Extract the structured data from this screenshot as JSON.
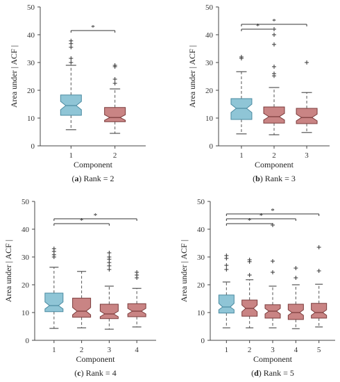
{
  "colors": {
    "first": "#8fc5d6",
    "first_edge": "#4a8aa0",
    "rest": "#c98484",
    "rest_edge": "#7a3a3a"
  },
  "chart_data": [
    {
      "type": "box",
      "xlabel": "Component",
      "ylabel": "Area under | ACF |",
      "ylim": [
        0,
        50
      ],
      "yticks": [
        0,
        10,
        20,
        30,
        40,
        50
      ],
      "caption_letter": "(a)",
      "caption_text": "Rank = 2",
      "categories": [
        "1",
        "2"
      ],
      "boxes": [
        {
          "category": "1",
          "min": 5.8,
          "q1": 11,
          "median": 14.5,
          "q3": 18.3,
          "max": 29,
          "notch_lo": 13,
          "notch_hi": 16,
          "outliers": [
            31.5,
            30,
            35.5,
            36.8,
            37.8
          ]
        },
        {
          "category": "2",
          "min": 4.5,
          "q1": 8.7,
          "median": 10.2,
          "q3": 13.8,
          "max": 20.5,
          "notch_lo": 9.2,
          "notch_hi": 11.2,
          "outliers": [
            22.5,
            24,
            28.5,
            29
          ]
        }
      ],
      "significance": [
        {
          "from": "1",
          "to": "2",
          "label": "*"
        }
      ]
    },
    {
      "type": "box",
      "xlabel": "Component",
      "ylabel": "Area under | ACF |",
      "ylim": [
        0,
        50
      ],
      "yticks": [
        0,
        10,
        20,
        30,
        40,
        50
      ],
      "caption_letter": "(b)",
      "caption_text": "Rank = 3",
      "categories": [
        "1",
        "2",
        "3"
      ],
      "boxes": [
        {
          "category": "1",
          "min": 4.3,
          "q1": 9.5,
          "median": 13.5,
          "q3": 17,
          "max": 26.7,
          "notch_lo": 12,
          "notch_hi": 15,
          "outliers": [
            31.5,
            32
          ]
        },
        {
          "category": "2",
          "min": 4,
          "q1": 8.2,
          "median": 10.5,
          "q3": 14,
          "max": 21,
          "notch_lo": 9.3,
          "notch_hi": 11.7,
          "outliers": [
            25.2,
            26,
            28.5,
            36.5,
            40,
            42
          ]
        },
        {
          "category": "3",
          "min": 4.8,
          "q1": 8,
          "median": 10.2,
          "q3": 13.5,
          "max": 19.2,
          "notch_lo": 9,
          "notch_hi": 11.4,
          "outliers": [
            30
          ]
        }
      ],
      "significance": [
        {
          "from": "1",
          "to": "2",
          "label": "*"
        },
        {
          "from": "1",
          "to": "3",
          "label": "*"
        }
      ]
    },
    {
      "type": "box",
      "xlabel": "Component",
      "ylabel": "Area under | ACF |",
      "ylim": [
        0,
        50
      ],
      "yticks": [
        0,
        10,
        20,
        30,
        40,
        50
      ],
      "caption_letter": "(c)",
      "caption_text": "Rank = 4",
      "categories": [
        "1",
        "2",
        "3",
        "4"
      ],
      "boxes": [
        {
          "category": "1",
          "min": 4.3,
          "q1": 10.3,
          "median": 12.5,
          "q3": 17,
          "max": 26.3,
          "notch_lo": 11.3,
          "notch_hi": 13.8,
          "outliers": [
            30,
            30.8,
            32,
            33
          ]
        },
        {
          "category": "2",
          "min": 4.5,
          "q1": 8.3,
          "median": 10.5,
          "q3": 15.2,
          "max": 24.8,
          "notch_lo": 9.2,
          "notch_hi": 11.8,
          "outliers": []
        },
        {
          "category": "3",
          "min": 4,
          "q1": 7.8,
          "median": 9.5,
          "q3": 13,
          "max": 19.5,
          "notch_lo": 8.5,
          "notch_hi": 10.5,
          "outliers": [
            25.5,
            26.8,
            28,
            29.2,
            30,
            31.5
          ]
        },
        {
          "category": "4",
          "min": 4.8,
          "q1": 8.5,
          "median": 10.5,
          "q3": 13.2,
          "max": 18.7,
          "notch_lo": 9.5,
          "notch_hi": 11.5,
          "outliers": [
            22.5,
            23.5,
            24.5
          ]
        }
      ],
      "significance": [
        {
          "from": "1",
          "to": "3",
          "label": "*"
        },
        {
          "from": "1",
          "to": "4",
          "label": "*"
        }
      ]
    },
    {
      "type": "box",
      "xlabel": "Component",
      "ylabel": "Area under | ACF |",
      "ylim": [
        0,
        50
      ],
      "yticks": [
        0,
        10,
        20,
        30,
        40,
        50
      ],
      "caption_letter": "(d)",
      "caption_text": "Rank = 5",
      "categories": [
        "1",
        "2",
        "3",
        "4",
        "5"
      ],
      "boxes": [
        {
          "category": "1",
          "min": 4.5,
          "q1": 9.8,
          "median": 12,
          "q3": 16.3,
          "max": 21,
          "notch_lo": 11,
          "notch_hi": 13.3,
          "outliers": [
            25.5,
            27,
            29.5,
            30.5
          ]
        },
        {
          "category": "2",
          "min": 4.5,
          "q1": 8.7,
          "median": 11.5,
          "q3": 14.5,
          "max": 21.8,
          "notch_lo": 10.3,
          "notch_hi": 12.7,
          "outliers": [
            23.5,
            28.3,
            29
          ]
        },
        {
          "category": "3",
          "min": 4.5,
          "q1": 8,
          "median": 10.5,
          "q3": 12.8,
          "max": 19.5,
          "notch_lo": 9.5,
          "notch_hi": 11.5,
          "outliers": [
            24.5,
            28.5,
            41.5
          ]
        },
        {
          "category": "4",
          "min": 4.2,
          "q1": 7.5,
          "median": 10,
          "q3": 13,
          "max": 20,
          "notch_lo": 9,
          "notch_hi": 11,
          "outliers": [
            22.5,
            26
          ]
        },
        {
          "category": "5",
          "min": 4.8,
          "q1": 8,
          "median": 10,
          "q3": 13.3,
          "max": 20.2,
          "notch_lo": 9,
          "notch_hi": 11,
          "outliers": [
            25,
            33.5
          ]
        }
      ],
      "significance": [
        {
          "from": "1",
          "to": "3",
          "label": "*"
        },
        {
          "from": "1",
          "to": "4",
          "label": "*"
        },
        {
          "from": "1",
          "to": "5",
          "label": "*"
        }
      ]
    }
  ]
}
